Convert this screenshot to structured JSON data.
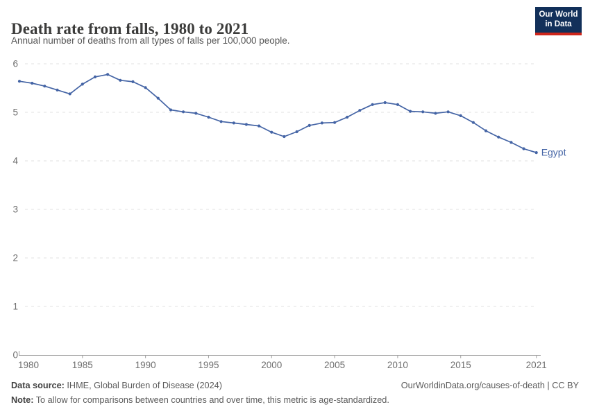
{
  "header": {
    "title": "Death rate from falls, 1980 to 2021",
    "subtitle": "Annual number of deaths from all types of falls per 100,000 people.",
    "logo": {
      "line1": "Our World",
      "line2": "in Data",
      "bg_color": "#12305A",
      "accent_color": "#CE261B"
    }
  },
  "chart_data": {
    "type": "line",
    "title": "Death rate from falls, 1980 to 2021",
    "xlabel": "",
    "ylabel": "",
    "xlim": [
      1980,
      2021
    ],
    "ylim": [
      0,
      6
    ],
    "xticks": [
      1980,
      1985,
      1990,
      1995,
      2000,
      2005,
      2010,
      2015,
      2021
    ],
    "yticks": [
      0,
      1,
      2,
      3,
      4,
      5,
      6
    ],
    "grid": "horizontal-dashed",
    "legend_position": "end-of-line-label",
    "x": [
      1980,
      1981,
      1982,
      1983,
      1984,
      1985,
      1986,
      1987,
      1988,
      1989,
      1990,
      1991,
      1992,
      1993,
      1994,
      1995,
      1996,
      1997,
      1998,
      1999,
      2000,
      2001,
      2002,
      2003,
      2004,
      2005,
      2006,
      2007,
      2008,
      2009,
      2010,
      2011,
      2012,
      2013,
      2014,
      2015,
      2016,
      2017,
      2018,
      2019,
      2020,
      2021
    ],
    "series": [
      {
        "name": "Egypt",
        "color": "#4464A5",
        "values": [
          5.64,
          5.6,
          5.54,
          5.46,
          5.38,
          5.58,
          5.73,
          5.78,
          5.66,
          5.63,
          5.51,
          5.29,
          5.05,
          5.01,
          4.98,
          4.9,
          4.81,
          4.78,
          4.75,
          4.72,
          4.59,
          4.5,
          4.6,
          4.73,
          4.78,
          4.79,
          4.9,
          5.04,
          5.16,
          5.2,
          5.16,
          5.02,
          5.01,
          4.98,
          5.01,
          4.93,
          4.79,
          4.62,
          4.49,
          4.38,
          4.25,
          4.17
        ]
      }
    ]
  },
  "footer": {
    "source_label": "Data source:",
    "source_text": " IHME, Global Burden of Disease (2024)",
    "citation": "OurWorldinData.org/causes-of-death | CC BY",
    "note_label": "Note:",
    "note_text": " To allow for comparisons between countries and over time, this metric is age-standardized."
  },
  "colors": {
    "line": "#4464A5",
    "grid": "#E0E0E0",
    "axis": "#9E9E9E",
    "tick_label": "#6E6E6E",
    "title": "#3C3C3B",
    "subtitle": "#555555",
    "footer": "#5B5B5B",
    "logo_bg": "#12305A",
    "logo_accent": "#CE261B"
  }
}
